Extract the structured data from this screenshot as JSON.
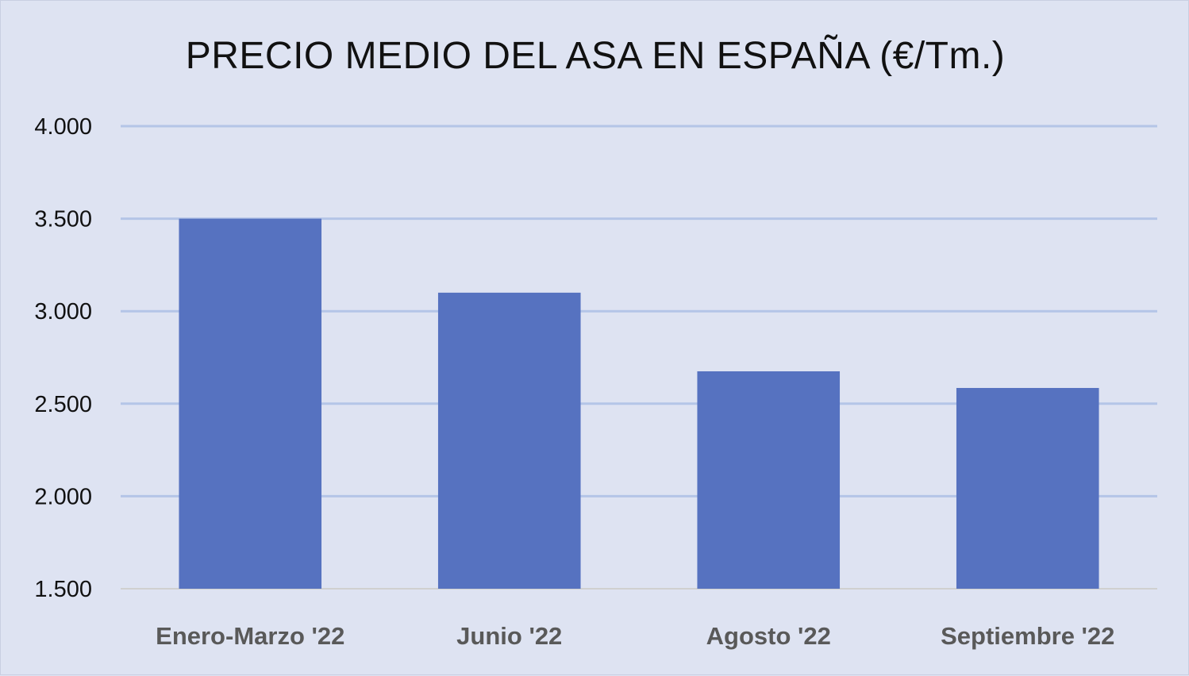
{
  "chart_data": {
    "type": "bar",
    "title": "PRECIO MEDIO DEL ASA EN ESPAÑA (€/Tm.)",
    "categories": [
      "Enero-Marzo '22",
      "Junio '22",
      "Agosto '22",
      "Septiembre '22"
    ],
    "values": [
      3500,
      3100,
      2675,
      2585
    ],
    "ylim": [
      1500,
      4000
    ],
    "yticks": [
      1500,
      2000,
      2500,
      3000,
      3500,
      4000
    ],
    "ytick_labels": [
      "1.500",
      "2.000",
      "2.500",
      "3.000",
      "3.500",
      "4.000"
    ],
    "xlabel": "",
    "ylabel": "",
    "grid": true,
    "legend": "none",
    "colors": {
      "bar": "#5672c0",
      "gridline": "#b4c5e7",
      "background": "#dee3f2",
      "axis_line": "#d0d0d0"
    }
  }
}
